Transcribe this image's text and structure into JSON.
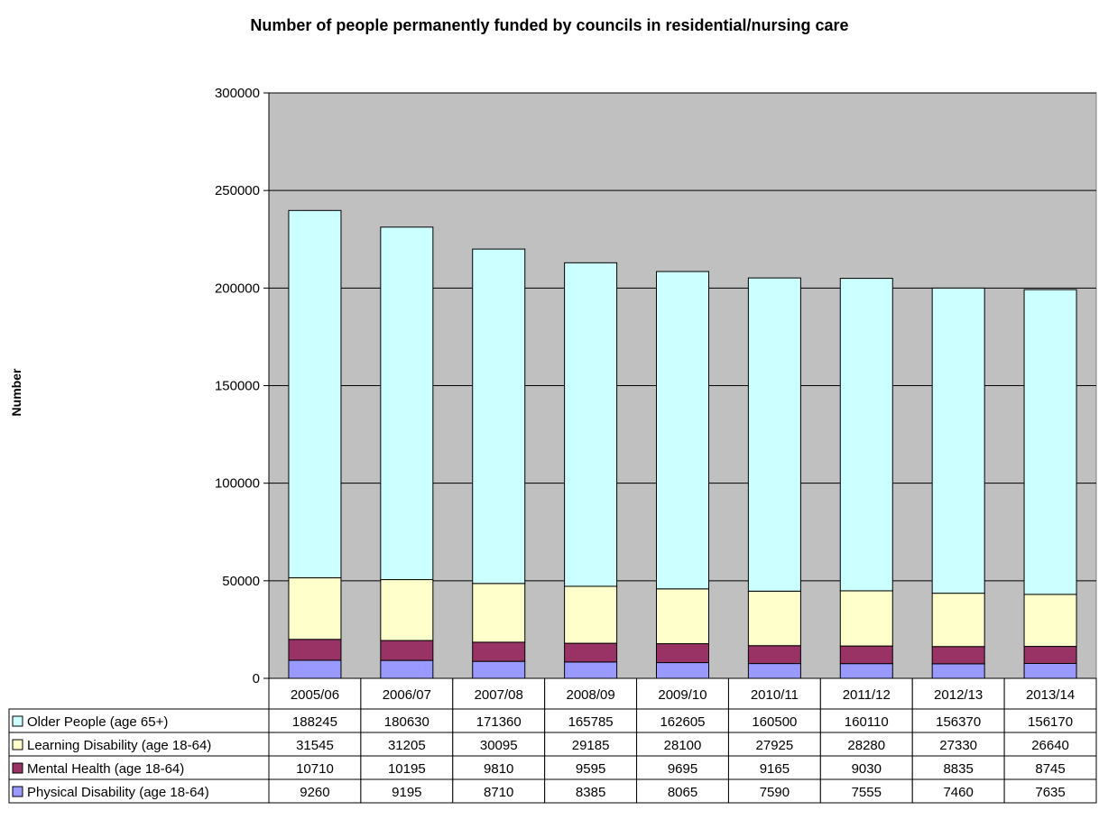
{
  "chart_data": {
    "type": "bar",
    "stacked": true,
    "title": "Number of people permanently funded by councils in residential/nursing care",
    "ylabel": "Number",
    "xlabel": "",
    "ylim": [
      0,
      300000
    ],
    "yticks": [
      "0",
      "50000",
      "100000",
      "150000",
      "200000",
      "250000",
      "300000"
    ],
    "categories": [
      "2005/06",
      "2006/07",
      "2007/08",
      "2008/09",
      "2009/10",
      "2010/11",
      "2011/12",
      "2012/13",
      "2013/14"
    ],
    "series": [
      {
        "name": "Physical Disability (age 18-64)",
        "color": "#9999ff",
        "values": [
          9260,
          9195,
          8710,
          8385,
          8065,
          7590,
          7555,
          7460,
          7635
        ]
      },
      {
        "name": "Mental Health (age 18-64)",
        "color": "#993366",
        "values": [
          10710,
          10195,
          9810,
          9595,
          9695,
          9165,
          9030,
          8835,
          8745
        ]
      },
      {
        "name": "Learning Disability (age 18-64)",
        "color": "#ffffcc",
        "values": [
          31545,
          31205,
          30095,
          29185,
          28100,
          27925,
          28280,
          27330,
          26640
        ]
      },
      {
        "name": "Older People (age 65+)",
        "color": "#ccffff",
        "values": [
          188245,
          180630,
          171360,
          165785,
          162605,
          160500,
          160110,
          156370,
          156170
        ]
      }
    ],
    "grid": true,
    "plot_background": "#c0c0c0",
    "legend": "data-table"
  }
}
